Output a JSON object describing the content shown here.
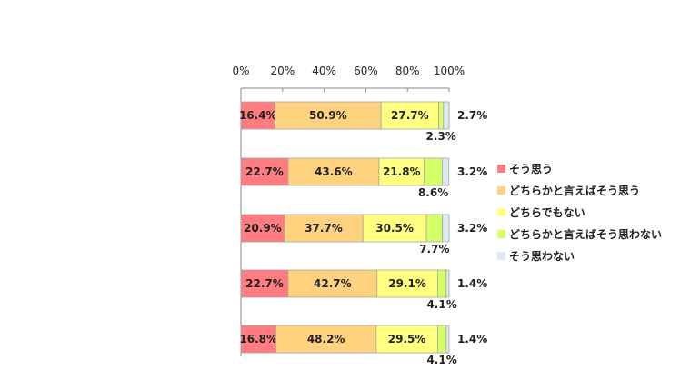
{
  "chart_data": {
    "type": "bar",
    "orientation": "horizontal",
    "stacked": true,
    "xlim": [
      0,
      100
    ],
    "x_ticks": [
      "0%",
      "20%",
      "40%",
      "60%",
      "80%",
      "100%"
    ],
    "categories": [
      "",
      "",
      "",
      "",
      ""
    ],
    "series": [
      {
        "name": "そう思う",
        "color": "#ff7c80",
        "values": [
          16.4,
          22.7,
          20.9,
          22.7,
          16.8
        ],
        "labels": [
          "16.4%",
          "22.7%",
          "20.9%",
          "22.7%",
          "16.8%"
        ]
      },
      {
        "name": "どちらかと言えばそう思う",
        "color": "#ffd280",
        "values": [
          50.9,
          43.6,
          37.7,
          42.7,
          48.2
        ],
        "labels": [
          "50.9%",
          "43.6%",
          "37.7%",
          "42.7%",
          "48.2%"
        ]
      },
      {
        "name": "どちらでもない",
        "color": "#ffff80",
        "values": [
          27.7,
          21.8,
          30.5,
          29.1,
          29.5
        ],
        "labels": [
          "27.7%",
          "21.8%",
          "30.5%",
          "29.1%",
          "29.5%"
        ]
      },
      {
        "name": "どちらかと言えばそう思わない",
        "color": "#d5ff66",
        "values": [
          2.3,
          8.6,
          7.7,
          4.1,
          4.1
        ],
        "labels": [
          "2.3%",
          "8.6%",
          "7.7%",
          "4.1%",
          "4.1%"
        ]
      },
      {
        "name": "そう思わない",
        "color": "#dde9f5",
        "values": [
          2.7,
          3.2,
          3.2,
          1.4,
          1.4
        ],
        "labels": [
          "2.7%",
          "3.2%",
          "3.2%",
          "1.4%",
          "1.4%"
        ]
      }
    ],
    "legend_position": "right",
    "grid": false
  }
}
